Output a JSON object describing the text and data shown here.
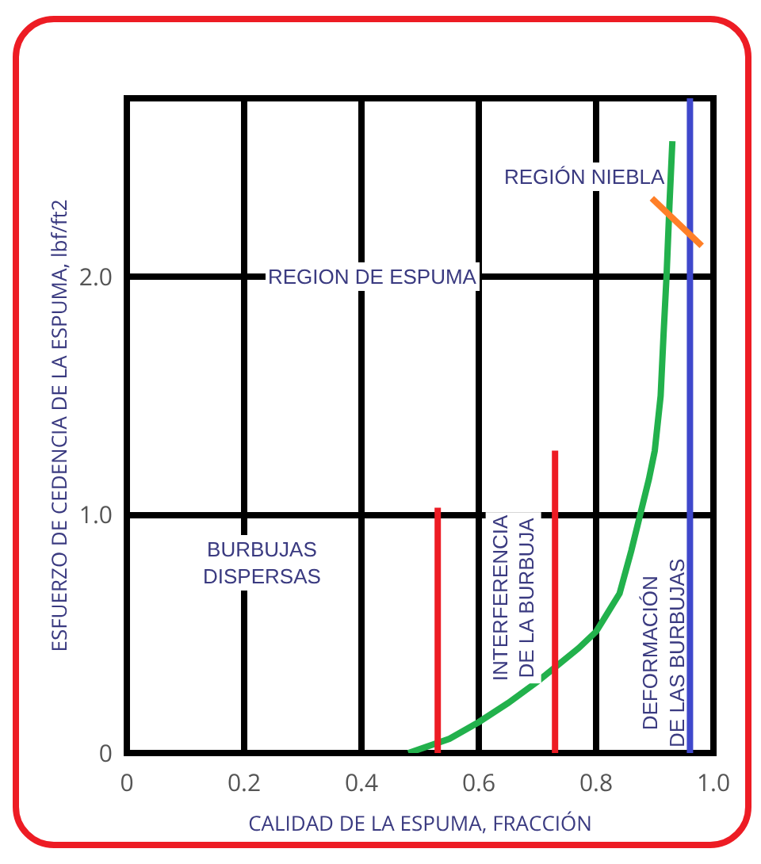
{
  "chart_data": {
    "type": "line",
    "xlabel": "CALIDAD DE LA ESPUMA, FRACCIÓN",
    "ylabel": "ESFUERZO DE CEDENCIA DE LA ESPUMA, lbf/ft2",
    "xlim": [
      0,
      1.0
    ],
    "ylim": [
      0,
      2.75
    ],
    "xticks": [
      0,
      0.2,
      0.4,
      0.6,
      0.8,
      {
        "value": 1,
        "label": "1.0"
      }
    ],
    "yticks": [
      0,
      {
        "value": 1,
        "label": "1.0"
      },
      {
        "value": 2,
        "label": "2.0"
      }
    ],
    "grid": true,
    "marker": "none",
    "line_style": "solid",
    "series": [
      {
        "color": "#22b14c",
        "x": [
          0.48,
          0.55,
          0.6,
          0.65,
          0.7,
          0.73,
          0.77,
          0.8,
          0.84,
          0.86,
          0.875,
          0.89,
          0.9,
          0.91,
          0.915,
          0.92,
          0.925,
          0.93
        ],
        "values": [
          0,
          0.06,
          0.13,
          0.21,
          0.3,
          0.36,
          0.44,
          0.51,
          0.67,
          0.85,
          1.0,
          1.15,
          1.27,
          1.5,
          1.76,
          2.0,
          2.3,
          2.57
        ]
      },
      {
        "color": "#ed1c24",
        "x": [
          0.53,
          0.53
        ],
        "values": [
          0,
          1.03
        ]
      },
      {
        "color": "#ed1c24",
        "x": [
          0.73,
          0.73
        ],
        "values": [
          0,
          1.27
        ]
      },
      {
        "color": "#3f48cc",
        "x": [
          0.96,
          0.96
        ],
        "values": [
          0,
          2.75
        ]
      },
      {
        "color": "#ff7f27",
        "x": [
          0.895,
          0.98
        ],
        "values": [
          2.33,
          2.13
        ]
      }
    ],
    "annotations": [
      "REGION DE ESPUMA",
      "REGIÓN NIEBLA",
      "BURBUJAS\nDISPERSAS",
      "INTERFERENCIA\nDE LA BURBUJA",
      "DEFORMACIÓN\nDE LAS BURBUJAS"
    ]
  }
}
